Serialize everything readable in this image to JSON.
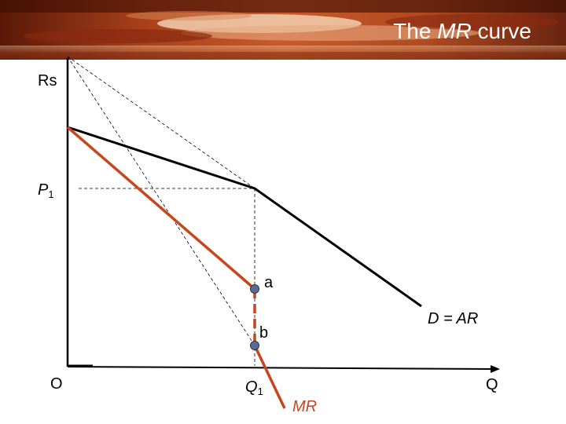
{
  "title": {
    "pre": "The ",
    "em": "MR",
    "post": " curve"
  },
  "axes": {
    "y_label": "Rs",
    "origin_label": "O",
    "x_label": "Q"
  },
  "price": {
    "label": "P",
    "sub": "1"
  },
  "quantity": {
    "label": "Q",
    "sub": "1"
  },
  "points": {
    "a": "a",
    "b": "b"
  },
  "curves": {
    "demand": "D = AR",
    "mr": "MR"
  },
  "colors": {
    "mr": "#c8451f",
    "axis": "#000000",
    "banner_text": "#ffffff"
  }
}
